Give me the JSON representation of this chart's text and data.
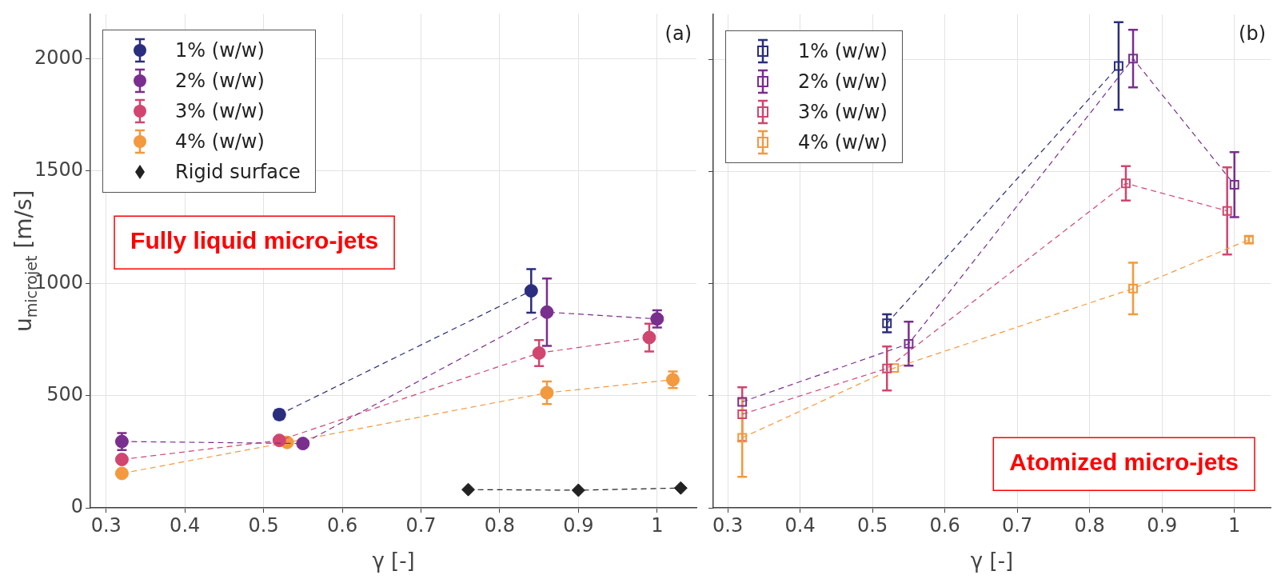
{
  "chart_data": [
    {
      "type": "line",
      "xlabel": "γ [-]",
      "ylabel": "u$_{microjet}$ [m/s]",
      "xlim": [
        0.28,
        1.05
      ],
      "ylim": [
        0,
        2200
      ],
      "xticks": [
        0.3,
        0.4,
        0.5,
        0.6,
        0.7,
        0.8,
        0.9,
        1
      ],
      "yticks": [
        0,
        500,
        1000,
        1500,
        2000
      ],
      "grid": true,
      "legend": "top left",
      "line_style": "dashed",
      "annotations": [
        "(a)",
        "Fully liquid micro-jets"
      ],
      "series": [
        {
          "name": "1% (w/w)",
          "color": "#2b2d7e",
          "marker": "circle",
          "x": [
            0.52,
            0.84
          ],
          "values": [
            416,
            967
          ],
          "errors": [
            20,
            97
          ]
        },
        {
          "name": "2% (w/w)",
          "color": "#7a2e8e",
          "marker": "circle",
          "x": [
            0.32,
            0.55,
            0.86,
            1.0
          ],
          "values": [
            296,
            287,
            872,
            842
          ],
          "errors": [
            38,
            null,
            150,
            38
          ]
        },
        {
          "name": "3% (w/w)",
          "color": "#d04670",
          "marker": "circle",
          "x": [
            0.32,
            0.52,
            0.85,
            0.99
          ],
          "values": [
            216,
            301,
            690,
            759
          ],
          "errors": [
            null,
            null,
            58,
            62
          ]
        },
        {
          "name": "4% (w/w)",
          "color": "#f3993e",
          "marker": "circle",
          "x": [
            0.32,
            0.53,
            0.86,
            1.02
          ],
          "values": [
            154,
            292,
            513,
            571
          ],
          "errors": [
            null,
            null,
            50,
            37
          ]
        },
        {
          "name": "Rigid surface",
          "color": "#222222",
          "marker": "diamond",
          "x": [
            0.76,
            0.9,
            1.03
          ],
          "values": [
            82,
            79,
            89
          ]
        }
      ]
    },
    {
      "type": "line",
      "xlabel": "γ [-]",
      "xlim": [
        0.28,
        1.05
      ],
      "ylim": [
        0,
        2200
      ],
      "xticks": [
        0.3,
        0.4,
        0.5,
        0.6,
        0.7,
        0.8,
        0.9,
        1
      ],
      "yticks": [
        0,
        500,
        1000,
        1500,
        2000
      ],
      "tick_labels": "x",
      "grid": true,
      "legend": "top left",
      "line_style": "dashed",
      "annotations": [
        "(b)",
        "Atomized micro-jets"
      ],
      "series": [
        {
          "name": "1% (w/w)",
          "color": "#2b2d7e",
          "marker": "square",
          "x": [
            0.52,
            0.84
          ],
          "values": [
            823,
            1970
          ],
          "errors": [
            40,
            195
          ]
        },
        {
          "name": "2% (w/w)",
          "color": "#7a2e8e",
          "marker": "square",
          "x": [
            0.32,
            0.55,
            0.86,
            1.0
          ],
          "values": [
            473,
            732,
            2003,
            1441
          ],
          "errors": [
            null,
            98,
            128,
            145
          ]
        },
        {
          "name": "3% (w/w)",
          "color": "#d04670",
          "marker": "square",
          "x": [
            0.32,
            0.52,
            0.85,
            0.99
          ],
          "values": [
            418,
            622,
            1447,
            1324
          ],
          "errors": [
            120,
            98,
            77,
            194
          ]
        },
        {
          "name": "4% (w/w)",
          "color": "#f3993e",
          "marker": "square",
          "x": [
            0.32,
            0.53,
            0.86,
            1.02
          ],
          "values": [
            313,
            624,
            978,
            1196
          ],
          "errors": [
            174,
            null,
            115,
            15
          ]
        }
      ]
    }
  ]
}
